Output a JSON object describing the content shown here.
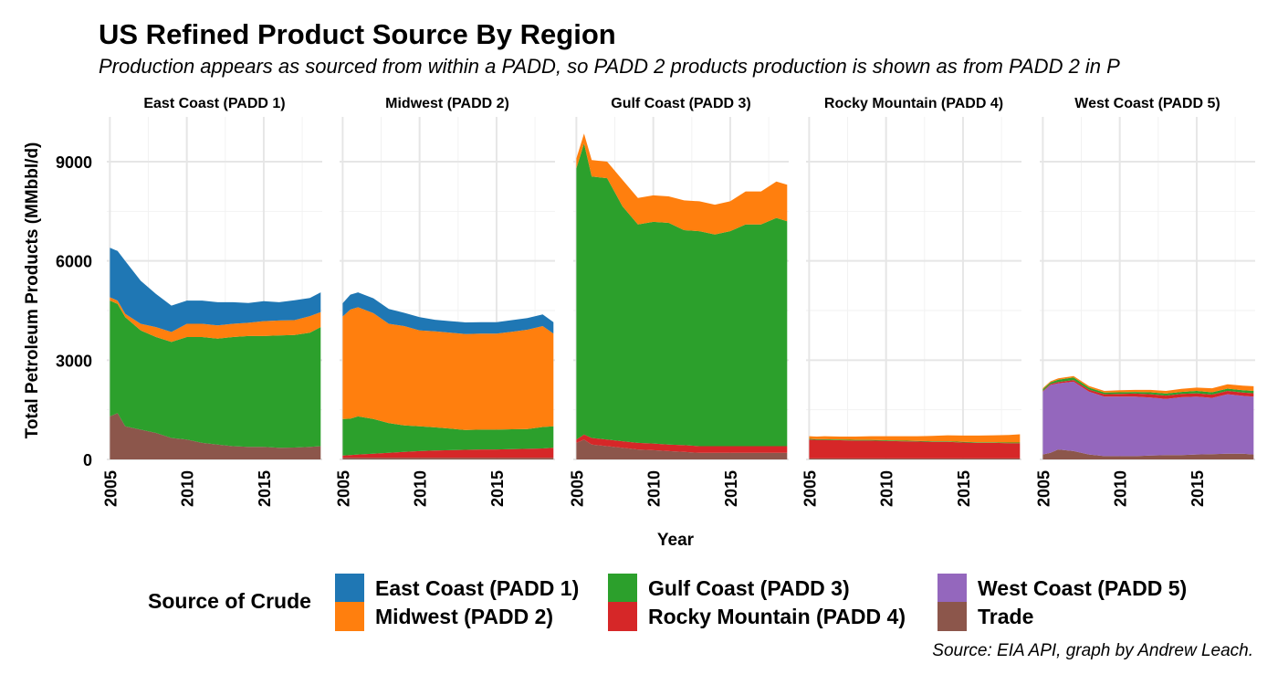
{
  "title": "US Refined Product Source By Region",
  "subtitle": "Production appears as sourced from within a PADD, so PADD 2 products production is shown as from PADD 2 in P",
  "caption": "Source: EIA API, graph by Andrew Leach.",
  "legend": {
    "title": "Source of Crude",
    "items": [
      {
        "label": "East Coast (PADD 1)",
        "color": "#1f77b4"
      },
      {
        "label": "Midwest (PADD 2)",
        "color": "#ff7f0e"
      },
      {
        "label": "Gulf Coast (PADD 3)",
        "color": "#2ca02c"
      },
      {
        "label": "Rocky Mountain (PADD 4)",
        "color": "#d62728"
      },
      {
        "label": "West Coast (PADD 5)",
        "color": "#9467bd"
      },
      {
        "label": "Trade",
        "color": "#8c564b"
      }
    ]
  },
  "chart_data": {
    "type": "area",
    "stacked": true,
    "facet_by": "Destination PADD",
    "xlabel": "Year",
    "ylabel": "Total Petroleum Products (MMbbl/d)",
    "xlim": [
      2004.8,
      2018.8
    ],
    "ylim": [
      0,
      10000
    ],
    "x_ticks": [
      2005,
      2010,
      2015
    ],
    "y_ticks": [
      0,
      3000,
      6000,
      9000
    ],
    "grid": true,
    "legend_position": "bottom",
    "stack_order_bottom_to_top": [
      "Trade",
      "West Coast (PADD 5)",
      "Rocky Mountain (PADD 4)",
      "Gulf Coast (PADD 3)",
      "Midwest (PADD 2)",
      "East Coast (PADD 1)"
    ],
    "x": [
      2005,
      2005.5,
      2006,
      2007,
      2008,
      2009,
      2010,
      2011,
      2012,
      2013,
      2014,
      2015,
      2016,
      2017,
      2018,
      2018.7
    ],
    "panels": [
      {
        "title": "East Coast (PADD 1)",
        "series": [
          {
            "name": "Trade",
            "values": [
              1300,
              1400,
              1000,
              900,
              800,
              650,
              600,
              500,
              450,
              400,
              380,
              380,
              350,
              360,
              380,
              400
            ]
          },
          {
            "name": "West Coast (PADD 5)",
            "values": [
              0,
              0,
              0,
              0,
              0,
              0,
              0,
              0,
              0,
              0,
              0,
              0,
              0,
              0,
              0,
              0
            ]
          },
          {
            "name": "Rocky Mountain (PADD 4)",
            "values": [
              0,
              0,
              0,
              0,
              0,
              0,
              0,
              0,
              0,
              0,
              0,
              0,
              0,
              0,
              0,
              0
            ]
          },
          {
            "name": "Gulf Coast (PADD 3)",
            "values": [
              3500,
              3300,
              3300,
              3000,
              2900,
              2900,
              3100,
              3200,
              3200,
              3300,
              3350,
              3350,
              3400,
              3400,
              3450,
              3600
            ]
          },
          {
            "name": "Midwest (PADD 2)",
            "values": [
              100,
              100,
              100,
              200,
              300,
              300,
              400,
              400,
              400,
              400,
              400,
              450,
              450,
              450,
              500,
              450
            ]
          },
          {
            "name": "East Coast (PADD 1)",
            "values": [
              1500,
              1500,
              1600,
              1300,
              1000,
              800,
              700,
              700,
              700,
              650,
              600,
              600,
              550,
              600,
              550,
              600
            ]
          }
        ]
      },
      {
        "title": "Midwest (PADD 2)",
        "series": [
          {
            "name": "Trade",
            "values": [
              50,
              50,
              50,
              50,
              50,
              50,
              50,
              50,
              50,
              50,
              50,
              50,
              50,
              50,
              50,
              50
            ]
          },
          {
            "name": "West Coast (PADD 5)",
            "values": [
              0,
              0,
              0,
              0,
              0,
              0,
              0,
              0,
              0,
              0,
              0,
              0,
              0,
              0,
              0,
              0
            ]
          },
          {
            "name": "Rocky Mountain (PADD 4)",
            "values": [
              70,
              80,
              100,
              120,
              150,
              180,
              200,
              220,
              230,
              240,
              250,
              250,
              260,
              270,
              280,
              300
            ]
          },
          {
            "name": "Gulf Coast (PADD 3)",
            "values": [
              1100,
              1100,
              1150,
              1050,
              900,
              800,
              750,
              700,
              650,
              600,
              600,
              600,
              600,
              600,
              650,
              650
            ]
          },
          {
            "name": "Midwest (PADD 2)",
            "values": [
              3100,
              3300,
              3300,
              3200,
              3000,
              3000,
              2900,
              2900,
              2900,
              2900,
              2900,
              2900,
              2950,
              3000,
              3050,
              2800
            ]
          },
          {
            "name": "East Coast (PADD 1)",
            "values": [
              400,
              450,
              450,
              450,
              450,
              400,
              400,
              350,
              350,
              350,
              350,
              350,
              350,
              350,
              350,
              350
            ]
          }
        ]
      },
      {
        "title": "Gulf Coast (PADD 3)",
        "series": [
          {
            "name": "Trade",
            "values": [
              500,
              600,
              450,
              400,
              350,
              300,
              280,
              250,
              230,
              200,
              200,
              200,
              200,
              200,
              200,
              200
            ]
          },
          {
            "name": "West Coast (PADD 5)",
            "values": [
              0,
              0,
              0,
              0,
              0,
              0,
              0,
              0,
              0,
              0,
              0,
              0,
              0,
              0,
              0,
              0
            ]
          },
          {
            "name": "Rocky Mountain (PADD 4)",
            "values": [
              100,
              150,
              200,
              200,
              200,
              200,
              200,
              200,
              200,
              200,
              200,
              200,
              200,
              200,
              200,
              200
            ]
          },
          {
            "name": "Gulf Coast (PADD 3)",
            "values": [
              8200,
              8800,
              7900,
              7900,
              7100,
              6600,
              6700,
              6700,
              6500,
              6500,
              6400,
              6500,
              6700,
              6700,
              6900,
              6800
            ]
          },
          {
            "name": "Midwest (PADD 2)",
            "values": [
              300,
              300,
              500,
              500,
              800,
              800,
              800,
              800,
              900,
              900,
              900,
              900,
              1000,
              1000,
              1100,
              1100
            ]
          },
          {
            "name": "East Coast (PADD 1)",
            "values": [
              0,
              0,
              0,
              0,
              0,
              0,
              0,
              0,
              0,
              0,
              0,
              0,
              0,
              0,
              0,
              0
            ]
          }
        ]
      },
      {
        "title": "Rocky Mountain (PADD 4)",
        "series": [
          {
            "name": "Trade",
            "values": [
              30,
              30,
              30,
              30,
              30,
              30,
              30,
              30,
              30,
              30,
              30,
              30,
              30,
              30,
              30,
              30
            ]
          },
          {
            "name": "West Coast (PADD 5)",
            "values": [
              0,
              0,
              0,
              0,
              0,
              0,
              0,
              0,
              0,
              0,
              0,
              0,
              0,
              0,
              0,
              0
            ]
          },
          {
            "name": "Rocky Mountain (PADD 4)",
            "values": [
              570,
              560,
              560,
              550,
              540,
              540,
              530,
              520,
              510,
              500,
              500,
              480,
              470,
              470,
              460,
              460
            ]
          },
          {
            "name": "Gulf Coast (PADD 3)",
            "values": [
              20,
              20,
              20,
              20,
              20,
              20,
              20,
              20,
              20,
              20,
              20,
              20,
              20,
              20,
              20,
              20
            ]
          },
          {
            "name": "Midwest (PADD 2)",
            "values": [
              80,
              80,
              90,
              90,
              100,
              110,
              120,
              130,
              140,
              160,
              180,
              190,
              200,
              210,
              230,
              250
            ]
          },
          {
            "name": "East Coast (PADD 1)",
            "values": [
              0,
              0,
              0,
              0,
              0,
              0,
              0,
              0,
              0,
              0,
              0,
              0,
              0,
              0,
              0,
              0
            ]
          }
        ]
      },
      {
        "title": "West Coast (PADD 5)",
        "series": [
          {
            "name": "Trade",
            "values": [
              150,
              200,
              300,
              250,
              150,
              100,
              100,
              100,
              120,
              130,
              130,
              150,
              160,
              170,
              170,
              150
            ]
          },
          {
            "name": "West Coast (PADD 5)",
            "values": [
              1900,
              2050,
              2000,
              2100,
              1900,
              1800,
              1800,
              1800,
              1750,
              1700,
              1750,
              1750,
              1700,
              1800,
              1750,
              1750
            ]
          },
          {
            "name": "Rocky Mountain (PADD 4)",
            "values": [
              20,
              30,
              40,
              50,
              60,
              70,
              80,
              90,
              100,
              100,
              100,
              100,
              100,
              100,
              100,
              100
            ]
          },
          {
            "name": "Gulf Coast (PADD 3)",
            "values": [
              50,
              50,
              70,
              80,
              60,
              50,
              50,
              50,
              60,
              60,
              60,
              70,
              70,
              70,
              70,
              70
            ]
          },
          {
            "name": "Midwest (PADD 2)",
            "values": [
              30,
              30,
              40,
              40,
              50,
              50,
              60,
              60,
              70,
              80,
              90,
              100,
              120,
              130,
              140,
              140
            ]
          },
          {
            "name": "East Coast (PADD 1)",
            "values": [
              0,
              0,
              0,
              0,
              0,
              0,
              0,
              0,
              0,
              0,
              0,
              0,
              0,
              0,
              0,
              0
            ]
          }
        ]
      }
    ]
  }
}
